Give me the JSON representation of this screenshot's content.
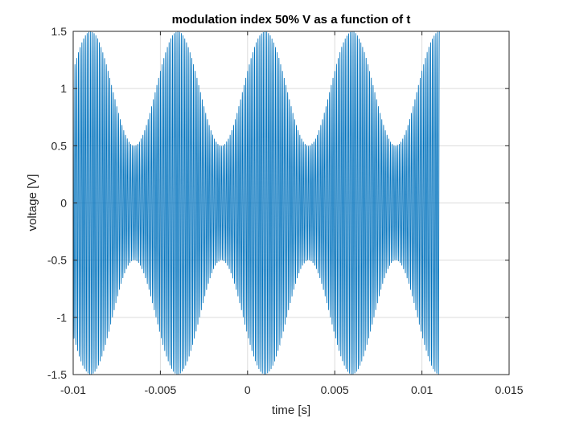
{
  "chart_data": {
    "type": "line",
    "title": "modulation index 50% V as a function of t",
    "xlabel": "time [s]",
    "ylabel": "voltage [V]",
    "xlim": [
      -0.01,
      0.015
    ],
    "ylim": [
      -1.5,
      1.5
    ],
    "xticks": [
      -0.01,
      -0.005,
      0,
      0.005,
      0.01,
      0.015
    ],
    "xtick_labels": [
      "-0.01",
      "-0.005",
      "0",
      "0.005",
      "0.01",
      "0.015"
    ],
    "yticks": [
      -1.5,
      -1,
      -0.5,
      0,
      0.5,
      1,
      1.5
    ],
    "ytick_labels": [
      "-1.5",
      "-1",
      "-0.5",
      "0",
      "0.5",
      "1",
      "1.5"
    ],
    "grid": true,
    "series": [
      {
        "color": "#0072BD",
        "x_start": -0.01,
        "x_end": 0.011,
        "carrier_frequency_hz": 10000,
        "message_frequency_hz": 200,
        "carrier_amplitude": 1,
        "modulation_index": 0.5,
        "message_phase_rad": -1.2566,
        "envelope_max": 1.5,
        "envelope_min": 0.5
      }
    ]
  }
}
